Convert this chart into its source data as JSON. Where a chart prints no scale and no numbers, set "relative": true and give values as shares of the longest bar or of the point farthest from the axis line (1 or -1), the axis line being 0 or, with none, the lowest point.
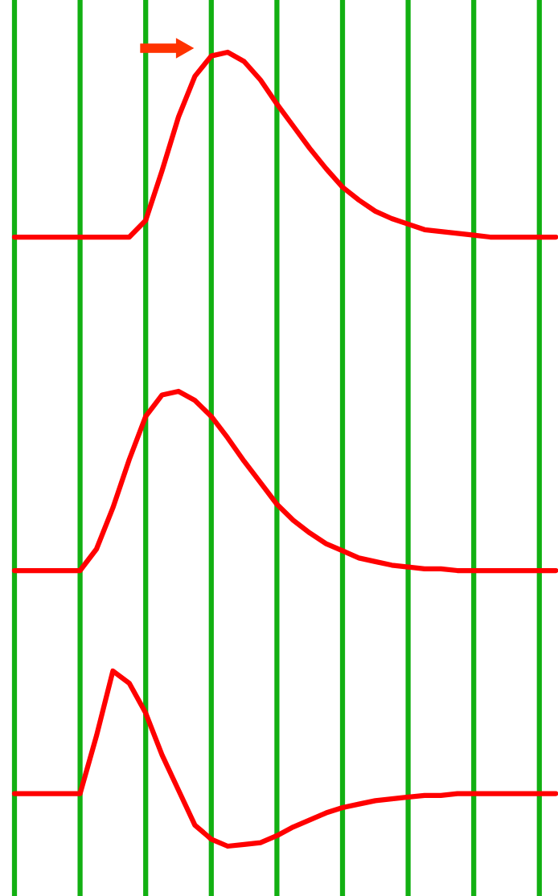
{
  "chart_data": [
    {
      "type": "line",
      "relative": true,
      "grid": "x",
      "marker": "none",
      "line_style": "solid",
      "categories": [
        null,
        null,
        null,
        null,
        null,
        null,
        null,
        null,
        null,
        null,
        null,
        null,
        null,
        null,
        null,
        null,
        null,
        null,
        null,
        null,
        null,
        null,
        null,
        null,
        null,
        null,
        null,
        null,
        null,
        null,
        null,
        null,
        null,
        null
      ],
      "series": [
        {
          "color": "#ff0000",
          "values": [
            0,
            0,
            0,
            0,
            0,
            0,
            0,
            0,
            0.09,
            0.36,
            0.65,
            0.87,
            0.98,
            1,
            0.95,
            0.85,
            0.72,
            0.6,
            0.48,
            0.37,
            0.27,
            0.2,
            0.14,
            0.1,
            0.07,
            0.04,
            0.03,
            0.02,
            0.01,
            0,
            0,
            0,
            0,
            0
          ]
        }
      ]
    },
    {
      "type": "line",
      "relative": true,
      "grid": "x",
      "marker": "none",
      "line_style": "solid",
      "categories": [
        null,
        null,
        null,
        null,
        null,
        null,
        null,
        null,
        null,
        null,
        null,
        null,
        null,
        null,
        null,
        null,
        null,
        null,
        null,
        null,
        null,
        null,
        null,
        null,
        null,
        null,
        null,
        null,
        null,
        null,
        null,
        null,
        null,
        null
      ],
      "series": [
        {
          "color": "#ff0000",
          "values": [
            0,
            0,
            0,
            0,
            0,
            0.12,
            0.35,
            0.62,
            0.86,
            0.98,
            1,
            0.95,
            0.86,
            0.74,
            0.61,
            0.49,
            0.37,
            0.28,
            0.21,
            0.15,
            0.11,
            0.07,
            0.05,
            0.03,
            0.02,
            0.01,
            0.01,
            0,
            0,
            0,
            0,
            0,
            0,
            0
          ]
        }
      ]
    },
    {
      "type": "line",
      "relative": true,
      "grid": "x",
      "marker": "none",
      "line_style": "solid",
      "categories": [
        null,
        null,
        null,
        null,
        null,
        null,
        null,
        null,
        null,
        null,
        null,
        null,
        null,
        null,
        null,
        null,
        null,
        null,
        null,
        null,
        null,
        null,
        null,
        null,
        null,
        null,
        null,
        null,
        null,
        null,
        null,
        null,
        null,
        null
      ],
      "series": [
        {
          "color": "#ff0000",
          "values": [
            0.3,
            0.3,
            0.3,
            0.3,
            0.3,
            0.63,
            1,
            0.93,
            0.76,
            0.52,
            0.32,
            0.12,
            0.04,
            0,
            0.01,
            0.02,
            0.06,
            0.11,
            0.15,
            0.19,
            0.22,
            0.24,
            0.26,
            0.27,
            0.28,
            0.29,
            0.29,
            0.3,
            0.3,
            0.3,
            0.3,
            0.3,
            0.3,
            0.3
          ]
        }
      ]
    }
  ]
}
